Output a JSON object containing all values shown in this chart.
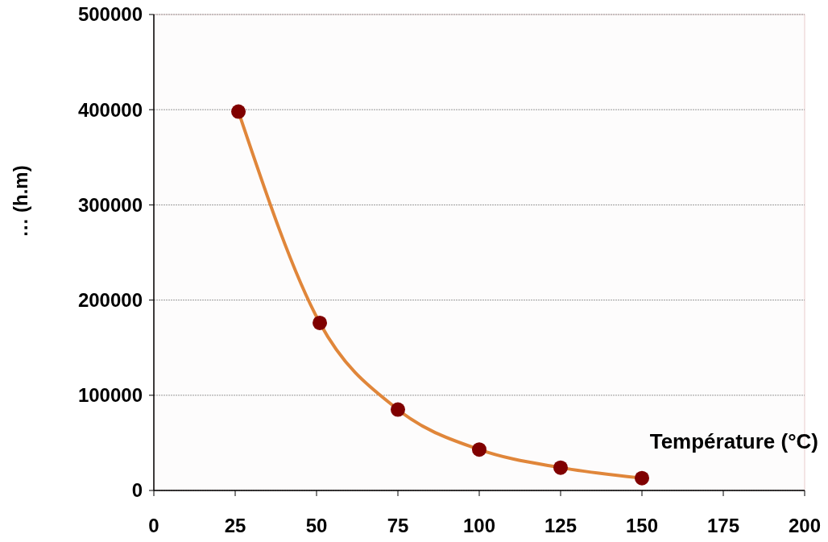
{
  "chart_data": {
    "type": "line",
    "xlabel": "Température (°C)",
    "ylabel": "… (h.m)",
    "x": [
      26,
      51,
      75,
      100,
      125,
      150
    ],
    "series": [
      {
        "color": "#e0863a",
        "colors": [
          "#800000",
          "#800000",
          "#800000",
          "#800000",
          "#800000",
          "#800000"
        ],
        "values": [
          398000,
          176000,
          85000,
          43000,
          24000,
          13000
        ]
      }
    ],
    "xlim": [
      0,
      200
    ],
    "xticks": [
      0,
      25,
      50,
      75,
      100,
      125,
      150,
      175,
      200
    ],
    "ylim": [
      0,
      500000
    ],
    "yticks": [
      0,
      100000,
      200000,
      300000,
      400000,
      500000
    ],
    "grid": "y",
    "marker": "circle",
    "line_style": "solid"
  }
}
